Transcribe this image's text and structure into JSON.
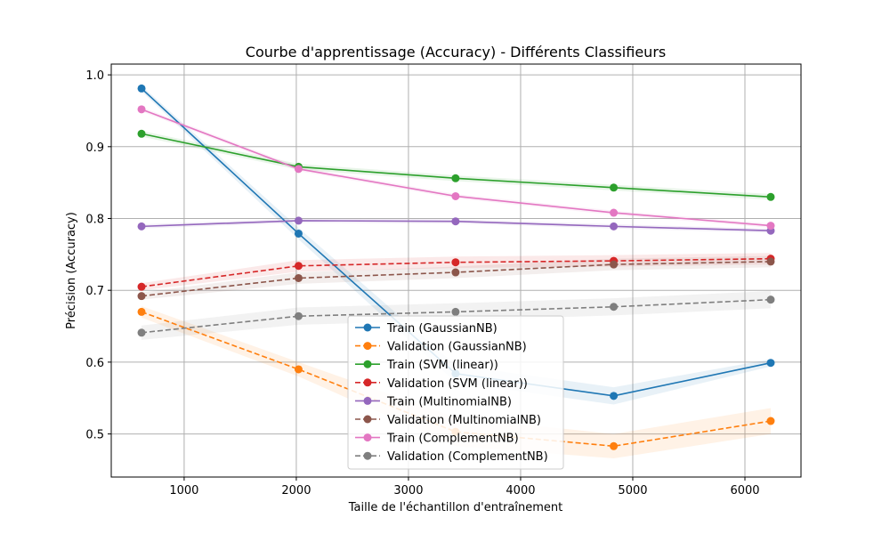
{
  "chart_data": {
    "type": "line",
    "title": "Courbe d'apprentissage (Accuracy) - Différents Classifieurs",
    "xlabel": "Taille de l'échantillon d'entraînement",
    "ylabel": "Précision (Accuracy)",
    "xlim": [
      350,
      6500
    ],
    "ylim": [
      0.44,
      1.015
    ],
    "xticks": [
      1000,
      2000,
      3000,
      4000,
      5000,
      6000
    ],
    "yticks": [
      0.5,
      0.6,
      0.7,
      0.8,
      0.9,
      1.0
    ],
    "grid": true,
    "legend_position": "lower-center",
    "x": [
      620,
      2020,
      3420,
      4830,
      6230
    ],
    "series": [
      {
        "name": "Train (GaussianNB)",
        "color": "#1f77b4",
        "dash": false,
        "values": [
          0.981,
          0.779,
          0.584,
          0.553,
          0.599
        ],
        "band": [
          0.004,
          0.008,
          0.012,
          0.012,
          0.005
        ]
      },
      {
        "name": "Validation (GaussianNB)",
        "color": "#ff7f0e",
        "dash": true,
        "values": [
          0.67,
          0.59,
          0.503,
          0.483,
          0.518
        ],
        "band": [
          0.008,
          0.01,
          0.02,
          0.017,
          0.018
        ]
      },
      {
        "name": "Train (SVM (linear))",
        "color": "#2ca02c",
        "dash": false,
        "values": [
          0.918,
          0.872,
          0.856,
          0.843,
          0.83
        ],
        "band": [
          0.004,
          0.004,
          0.004,
          0.004,
          0.004
        ]
      },
      {
        "name": "Validation (SVM (linear))",
        "color": "#d62728",
        "dash": true,
        "values": [
          0.705,
          0.734,
          0.739,
          0.741,
          0.744
        ],
        "band": [
          0.005,
          0.008,
          0.008,
          0.008,
          0.008
        ]
      },
      {
        "name": "Train (MultinomialNB)",
        "color": "#9467bd",
        "dash": false,
        "values": [
          0.789,
          0.797,
          0.796,
          0.789,
          0.783
        ],
        "band": [
          0.003,
          0.003,
          0.003,
          0.003,
          0.003
        ]
      },
      {
        "name": "Validation (MultinomialNB)",
        "color": "#8c564b",
        "dash": true,
        "values": [
          0.692,
          0.717,
          0.725,
          0.736,
          0.74
        ],
        "band": [
          0.005,
          0.008,
          0.008,
          0.008,
          0.008
        ]
      },
      {
        "name": "Train (ComplementNB)",
        "color": "#e377c2",
        "dash": false,
        "values": [
          0.952,
          0.869,
          0.831,
          0.808,
          0.79
        ],
        "band": [
          0.003,
          0.003,
          0.003,
          0.003,
          0.003
        ]
      },
      {
        "name": "Validation (ComplementNB)",
        "color": "#7f7f7f",
        "dash": true,
        "values": [
          0.641,
          0.664,
          0.67,
          0.677,
          0.687
        ],
        "band": [
          0.01,
          0.012,
          0.012,
          0.012,
          0.012
        ]
      }
    ]
  }
}
